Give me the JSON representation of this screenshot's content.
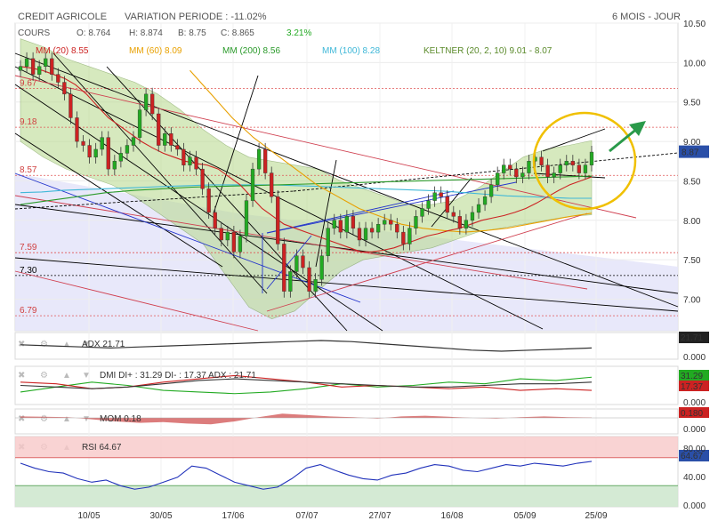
{
  "header": {
    "stock": "CREDIT AGRICOLE",
    "variation": "VARIATION PERIODE : -11.02%",
    "period": "6 MOIS - JOUR"
  },
  "legend": {
    "cours": "COURS",
    "open": "O: 8.764",
    "high": "H: 8.874",
    "low": "B: 8.75",
    "close": "C: 8.865",
    "change": "3.21%",
    "mm20": "MM (20) 8.55",
    "mm60": "MM (60) 8.09",
    "mm200": "MM (200) 8.56",
    "mm100": "MM (100) 8.28",
    "keltner": "KELTNER (20, 2, 10) 9.01 - 8.07"
  },
  "colors": {
    "up": "#22aa22",
    "down": "#cc2222",
    "mm20": "#cc2222",
    "mm60": "#e8a000",
    "mm200": "#2a9a2a",
    "mm100": "#40b8d8",
    "keltner": "#5a8a2a",
    "highlight": "#f0c000",
    "arrow": "#2a9a4a"
  },
  "chart_data": [
    {
      "type": "candlestick",
      "name": "price",
      "ylim": [
        6.6,
        10.5
      ],
      "yticks": [
        7.0,
        7.5,
        8.0,
        8.5,
        9.0,
        9.5,
        10.0,
        10.5
      ],
      "ytick_labels": [
        "7.00",
        "7.50",
        "8.00",
        "8.50",
        "9.00",
        "9.50",
        "10.00",
        "10.50"
      ],
      "x_labels": [
        "10/05",
        "30/05",
        "17/06",
        "07/07",
        "27/07",
        "16/08",
        "05/09",
        "25/09"
      ],
      "last_price": "8.87",
      "levels": [
        {
          "value": 9.67,
          "label": "9.67"
        },
        {
          "value": 9.18,
          "label": "9.18"
        },
        {
          "value": 8.57,
          "label": "8.57"
        },
        {
          "value": 7.59,
          "label": "7.59"
        },
        {
          "value": 7.3,
          "label": "7.30"
        },
        {
          "value": 6.79,
          "label": "6.79"
        }
      ],
      "closes": [
        9.95,
        10.05,
        9.85,
        9.95,
        10.05,
        9.85,
        9.75,
        9.6,
        9.3,
        9.0,
        8.95,
        8.8,
        8.9,
        9.05,
        8.65,
        8.75,
        8.85,
        8.95,
        9.05,
        9.4,
        9.6,
        9.35,
        8.95,
        9.1,
        8.95,
        8.9,
        8.7,
        8.8,
        8.65,
        8.4,
        8.1,
        7.9,
        7.75,
        7.85,
        7.6,
        7.8,
        8.25,
        8.65,
        8.9,
        8.6,
        8.3,
        7.7,
        7.1,
        7.35,
        7.55,
        7.4,
        7.1,
        7.25,
        7.55,
        7.9,
        8.0,
        7.85,
        8.05,
        7.9,
        7.75,
        7.9,
        7.85,
        7.95,
        8.0,
        7.95,
        7.85,
        7.7,
        7.9,
        8.05,
        8.15,
        8.25,
        8.35,
        8.3,
        8.1,
        8.05,
        7.9,
        8.0,
        8.1,
        8.2,
        8.3,
        8.45,
        8.6,
        8.7,
        8.65,
        8.55,
        8.6,
        8.75,
        8.8,
        8.7,
        8.55,
        8.6,
        8.7,
        8.75,
        8.7,
        8.6,
        8.7,
        8.865
      ],
      "mm20": [
        9.95,
        9.93,
        9.9,
        9.85,
        9.8,
        9.72,
        9.6,
        9.45,
        9.3,
        9.2,
        9.1,
        9.0,
        8.92,
        8.85,
        8.8,
        8.75,
        8.72,
        8.7,
        8.65,
        8.55,
        8.45,
        8.3,
        8.15,
        8.05,
        7.95,
        7.9,
        7.85,
        7.8,
        7.75,
        7.7,
        7.65,
        7.6,
        7.6,
        7.62,
        7.65,
        7.7,
        7.75,
        7.8,
        7.83,
        7.87,
        7.9,
        7.95,
        8.0,
        8.03,
        8.06,
        8.1,
        8.15,
        8.22,
        8.3,
        8.38,
        8.45,
        8.5,
        8.55
      ],
      "mm100": [
        8.35,
        8.36,
        8.38,
        8.39,
        8.4,
        8.41,
        8.42,
        8.43,
        8.44,
        8.45,
        8.45,
        8.45,
        8.45,
        8.44,
        8.43,
        8.42,
        8.41,
        8.4,
        8.39,
        8.38,
        8.37,
        8.35,
        8.33,
        8.31,
        8.3,
        8.29,
        8.28,
        8.28
      ],
      "mm200": [
        8.2,
        8.25,
        8.3,
        8.35,
        8.38,
        8.4,
        8.42,
        8.43,
        8.44,
        8.45,
        8.46,
        8.47,
        8.48,
        8.49,
        8.5,
        8.51,
        8.52,
        8.53,
        8.54,
        8.55,
        8.56
      ],
      "mm60": [
        9.9,
        9.6,
        9.3,
        9.05,
        8.85,
        8.65,
        8.45,
        8.3,
        8.15,
        8.05,
        7.95,
        7.9,
        7.87,
        7.85,
        7.87,
        7.9,
        7.95,
        8.0,
        8.05,
        8.09
      ],
      "keltner_upper": [
        10.3,
        10.2,
        10.05,
        9.95,
        9.85,
        9.75,
        9.6,
        9.4,
        9.15,
        8.95,
        8.8,
        8.75,
        8.7,
        8.65,
        8.5,
        8.4,
        8.3,
        8.2,
        8.2,
        8.25,
        8.4,
        8.6,
        8.8,
        8.9,
        8.95,
        9.01
      ],
      "keltner_lower": [
        9.0,
        8.8,
        8.65,
        8.55,
        8.45,
        8.3,
        8.1,
        7.9,
        7.7,
        7.3,
        6.9,
        6.75,
        6.85,
        7.1,
        7.35,
        7.5,
        7.55,
        7.6,
        7.65,
        7.75,
        7.85,
        7.9,
        7.95,
        8.0,
        8.05,
        8.07
      ]
    },
    {
      "type": "line",
      "name": "ADX",
      "label": "ADX 21.71",
      "value": "21.71",
      "yticks": [
        "0.000"
      ],
      "values": [
        0.55,
        0.5,
        0.45,
        0.4,
        0.45,
        0.5,
        0.55,
        0.6,
        0.65,
        0.7,
        0.75,
        0.7,
        0.6,
        0.5,
        0.4,
        0.3,
        0.25,
        0.3,
        0.35,
        0.4
      ]
    },
    {
      "type": "line",
      "name": "DMI",
      "label": "DMI DI+ : 31.29 DI- : 17.37 ADX : 21.71",
      "values_label": [
        "31.29",
        "17.37"
      ],
      "yticks": [
        "0.000"
      ],
      "di_plus": [
        0.3,
        0.45,
        0.6,
        0.5,
        0.35,
        0.3,
        0.25,
        0.3,
        0.4,
        0.55,
        0.45,
        0.5,
        0.6,
        0.55,
        0.7,
        0.65,
        0.75
      ],
      "di_minus": [
        0.6,
        0.55,
        0.4,
        0.45,
        0.6,
        0.7,
        0.8,
        0.7,
        0.6,
        0.45,
        0.5,
        0.45,
        0.4,
        0.45,
        0.35,
        0.4,
        0.35
      ],
      "adx": [
        0.5,
        0.45,
        0.4,
        0.45,
        0.55,
        0.65,
        0.7,
        0.65,
        0.6,
        0.55,
        0.5,
        0.45,
        0.45,
        0.5,
        0.55,
        0.55,
        0.6
      ]
    },
    {
      "type": "area",
      "name": "MOM",
      "label": "MOM 0.18",
      "value": "0.180",
      "yticks": [
        "0.000"
      ],
      "values": [
        0.2,
        0.15,
        0.1,
        -0.2,
        -0.5,
        -0.7,
        -0.6,
        -0.8,
        -0.9,
        -0.5,
        0.1,
        0.6,
        0.4,
        0.2,
        0.1,
        -0.1,
        0.2,
        0.3,
        0.15,
        0.0,
        -0.1,
        0.1,
        0.2,
        0.1,
        0.05
      ]
    },
    {
      "type": "line",
      "name": "RSI",
      "label": "RSI 64.67",
      "value": "64.67",
      "yticks": [
        "80.00",
        "40.00",
        "0.000"
      ],
      "values": [
        62,
        55,
        50,
        48,
        40,
        35,
        38,
        30,
        25,
        28,
        35,
        42,
        58,
        55,
        45,
        35,
        30,
        25,
        28,
        40,
        55,
        60,
        52,
        45,
        40,
        38,
        45,
        48,
        55,
        60,
        58,
        52,
        50,
        55,
        60,
        58,
        62,
        60,
        58,
        62,
        64.67
      ]
    }
  ]
}
